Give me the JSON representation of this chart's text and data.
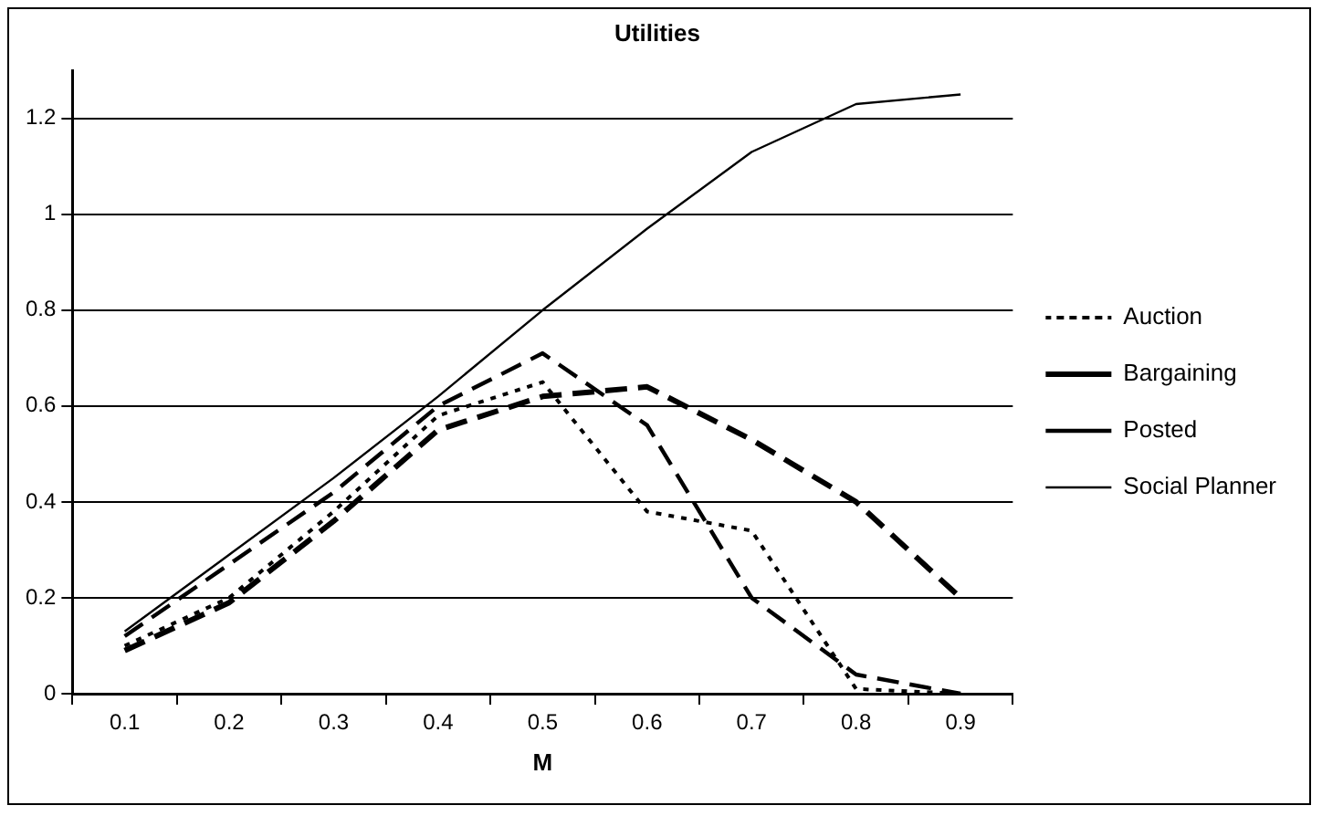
{
  "chart_data": {
    "type": "line",
    "title": "Utilities",
    "xlabel": "M",
    "categories": [
      "0.1",
      "0.2",
      "0.3",
      "0.4",
      "0.5",
      "0.6",
      "0.7",
      "0.8",
      "0.9"
    ],
    "series": [
      {
        "name": "Auction",
        "color": "#000000",
        "line_style": "dotted",
        "values": [
          0.1,
          0.2,
          0.38,
          0.58,
          0.65,
          0.38,
          0.34,
          0.01,
          0
        ]
      },
      {
        "name": "Bargaining",
        "color": "#000000",
        "line_style": "dashed",
        "values": [
          0.09,
          0.19,
          0.36,
          0.55,
          0.62,
          0.64,
          0.53,
          0.4,
          0.2
        ]
      },
      {
        "name": "Posted",
        "color": "#000000",
        "line_style": "dashed",
        "values": [
          0.12,
          0.27,
          0.42,
          0.6,
          0.71,
          0.56,
          0.2,
          0.04,
          0
        ]
      },
      {
        "name": "Social Planner",
        "color": "#000000",
        "line_style": "solid",
        "values": [
          0.13,
          0.29,
          0.45,
          0.62,
          0.8,
          0.97,
          1.13,
          1.23,
          1.25
        ]
      }
    ],
    "ylim": [
      0,
      1.3
    ],
    "yticks": [
      0,
      0.2,
      0.4,
      0.6,
      0.8,
      1,
      1.2
    ],
    "grid": "y",
    "legend": "right",
    "marker": "none"
  }
}
